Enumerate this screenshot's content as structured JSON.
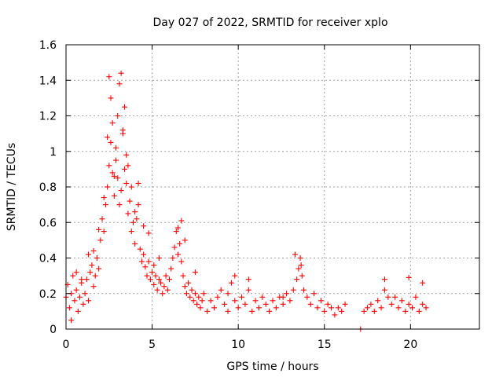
{
  "chart_data": {
    "type": "scatter",
    "title": "Day 027 of 2022, SRMTID for receiver xplo",
    "xlabel": "GPS time / hours",
    "ylabel": "SRMTID / TECUs",
    "xlim": [
      0,
      24
    ],
    "ylim": [
      0,
      1.6
    ],
    "xticks": [
      0,
      5,
      10,
      15,
      20
    ],
    "yticks": [
      0,
      0.2,
      0.4,
      0.6,
      0.8,
      1.0,
      1.2,
      1.4,
      1.6
    ],
    "xtick_labels": [
      "0",
      "5",
      "10",
      "15",
      "20"
    ],
    "ytick_labels": [
      "0",
      "0.2",
      "0.4",
      "0.6",
      "0.8",
      "1",
      "1.2",
      "1.4",
      "1.6"
    ],
    "grid": true,
    "marker": "+",
    "color": "#ff0000",
    "series": [
      {
        "name": "SRMTID",
        "x": [
          0.0,
          0.1,
          0.2,
          0.3,
          0.4,
          0.5,
          0.6,
          0.7,
          0.8,
          0.9,
          1.0,
          1.1,
          1.2,
          1.3,
          1.4,
          1.5,
          1.6,
          1.7,
          1.8,
          1.9,
          2.0,
          2.1,
          2.2,
          2.3,
          2.4,
          2.5,
          2.6,
          2.7,
          2.8,
          2.9,
          3.0,
          3.1,
          3.2,
          3.3,
          3.4,
          3.5,
          3.6,
          3.7,
          3.8,
          3.9,
          4.0,
          4.1,
          4.2,
          4.3,
          4.4,
          4.5,
          4.6,
          4.7,
          4.8,
          4.9,
          5.0,
          5.1,
          5.2,
          5.3,
          5.4,
          5.5,
          5.6,
          5.7,
          5.8,
          5.9,
          6.0,
          6.1,
          6.2,
          6.3,
          6.4,
          6.5,
          6.6,
          6.7,
          6.8,
          6.9,
          7.0,
          7.1,
          7.2,
          7.3,
          7.4,
          7.5,
          7.6,
          7.7,
          7.8,
          7.9,
          8.0,
          8.2,
          8.4,
          8.6,
          8.8,
          9.0,
          9.2,
          9.4,
          9.6,
          9.8,
          10.0,
          10.2,
          10.4,
          10.6,
          10.8,
          11.0,
          11.2,
          11.4,
          11.6,
          11.8,
          12.0,
          12.2,
          12.4,
          12.6,
          12.8,
          13.0,
          13.2,
          13.4,
          13.5,
          13.6,
          13.7,
          13.8,
          14.0,
          14.2,
          14.4,
          14.6,
          14.8,
          15.0,
          15.2,
          15.4,
          15.6,
          15.8,
          16.0,
          16.2,
          17.1,
          17.3,
          17.5,
          17.7,
          17.9,
          18.1,
          18.3,
          18.5,
          18.7,
          18.9,
          19.1,
          19.3,
          19.5,
          19.7,
          19.9,
          20.1,
          20.3,
          20.5,
          20.7,
          20.9,
          2.5,
          2.6,
          2.7,
          2.9,
          3.1,
          3.2,
          3.3,
          3.4,
          3.5,
          3.0,
          2.8,
          2.4,
          2.2,
          3.6,
          3.8,
          4.0,
          4.2,
          0.3,
          0.6,
          0.9,
          1.3,
          1.6,
          1.9,
          4.5,
          4.8,
          5.1,
          5.4,
          6.5,
          6.7,
          6.9,
          7.5,
          9.4,
          9.8,
          10.6,
          12.6,
          13.3,
          13.65,
          18.5,
          19.9,
          20.7
        ],
        "y": [
          0.18,
          0.25,
          0.12,
          0.2,
          0.3,
          0.16,
          0.22,
          0.1,
          0.18,
          0.26,
          0.14,
          0.2,
          0.28,
          0.16,
          0.32,
          0.36,
          0.24,
          0.3,
          0.4,
          0.34,
          0.5,
          0.62,
          0.55,
          0.7,
          0.8,
          0.92,
          1.05,
          0.88,
          0.75,
          0.95,
          0.85,
          0.7,
          0.78,
          1.1,
          0.9,
          0.82,
          0.65,
          0.72,
          0.55,
          0.6,
          0.48,
          0.62,
          0.7,
          0.45,
          0.38,
          0.42,
          0.35,
          0.3,
          0.38,
          0.28,
          0.32,
          0.25,
          0.3,
          0.22,
          0.28,
          0.26,
          0.2,
          0.24,
          0.3,
          0.22,
          0.28,
          0.34,
          0.4,
          0.46,
          0.55,
          0.42,
          0.48,
          0.38,
          0.3,
          0.24,
          0.2,
          0.26,
          0.18,
          0.22,
          0.16,
          0.2,
          0.14,
          0.18,
          0.12,
          0.16,
          0.2,
          0.1,
          0.16,
          0.12,
          0.18,
          0.22,
          0.14,
          0.2,
          0.26,
          0.16,
          0.12,
          0.18,
          0.14,
          0.22,
          0.1,
          0.16,
          0.12,
          0.18,
          0.14,
          0.1,
          0.16,
          0.12,
          0.18,
          0.14,
          0.2,
          0.16,
          0.22,
          0.28,
          0.34,
          0.4,
          0.3,
          0.22,
          0.18,
          0.14,
          0.2,
          0.12,
          0.16,
          0.1,
          0.14,
          0.12,
          0.08,
          0.12,
          0.1,
          0.14,
          0.0,
          0.1,
          0.12,
          0.14,
          0.1,
          0.16,
          0.12,
          0.22,
          0.18,
          0.14,
          0.18,
          0.12,
          0.16,
          0.1,
          0.14,
          0.12,
          0.18,
          0.1,
          0.14,
          0.12,
          1.42,
          1.3,
          1.16,
          1.02,
          1.38,
          1.44,
          1.12,
          1.25,
          0.98,
          1.2,
          0.86,
          1.08,
          0.74,
          0.92,
          0.8,
          0.66,
          0.82,
          0.05,
          0.32,
          0.28,
          0.42,
          0.44,
          0.56,
          0.58,
          0.54,
          0.36,
          0.4,
          0.57,
          0.61,
          0.5,
          0.32,
          0.1,
          0.3,
          0.28,
          0.18,
          0.42,
          0.36,
          0.28,
          0.29,
          0.26
        ]
      }
    ]
  }
}
